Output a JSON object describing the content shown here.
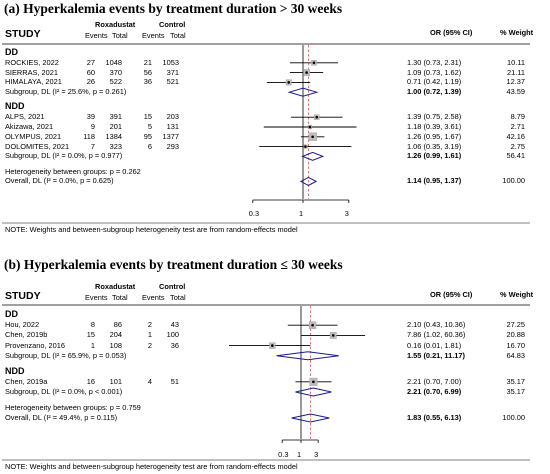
{
  "chart_data": [
    {
      "type": "forest",
      "title": "(a) Hyperkalemia events by treatment duration > 30 weeks",
      "scale": "log",
      "xticks": [
        0.3,
        1,
        3
      ],
      "xlim": [
        0.1,
        10
      ],
      "null_line": 1,
      "overall_line": 1.14,
      "headers": {
        "study": "STUDY",
        "arm1": "Roxadustat",
        "arm2": "Control",
        "events": "Events",
        "total": "Total",
        "or": "OR (95% CI)",
        "weight": "% Weight"
      },
      "rows": [
        {
          "kind": "group",
          "label": "DD"
        },
        {
          "kind": "study",
          "label": "ROCKIES, 2022",
          "e1": "27",
          "n1": "1048",
          "e2": "21",
          "n2": "1053",
          "or_text": "1.30 (0.73, 2.31)",
          "weight_text": "10.11",
          "or": 1.3,
          "lo": 0.73,
          "hi": 2.31,
          "weight": 10.11
        },
        {
          "kind": "study",
          "label": "SIERRAS, 2021",
          "e1": "60",
          "n1": "370",
          "e2": "56",
          "n2": "371",
          "or_text": "1.09 (0.73, 1.62)",
          "weight_text": "21.11",
          "or": 1.09,
          "lo": 0.73,
          "hi": 1.62,
          "weight": 21.11
        },
        {
          "kind": "study",
          "label": "HIMALAYA, 2021",
          "e1": "26",
          "n1": "522",
          "e2": "36",
          "n2": "521",
          "or_text": "0.71 (0.42, 1.19)",
          "weight_text": "12.37",
          "or": 0.71,
          "lo": 0.42,
          "hi": 1.19,
          "weight": 12.37
        },
        {
          "kind": "subgroup",
          "label": "Subgroup, DL (I² = 25.6%, p = 0.261)",
          "or_text": "1.00 (0.72, 1.39)",
          "weight_text": "43.59",
          "or": 1.0,
          "lo": 0.72,
          "hi": 1.39
        },
        {
          "kind": "gap"
        },
        {
          "kind": "group",
          "label": "NDD"
        },
        {
          "kind": "study",
          "label": "ALPS, 2021",
          "e1": "39",
          "n1": "391",
          "e2": "15",
          "n2": "203",
          "or_text": "1.39 (0.75, 2.58)",
          "weight_text": "8.79",
          "or": 1.39,
          "lo": 0.75,
          "hi": 2.58,
          "weight": 8.79
        },
        {
          "kind": "study",
          "label": "Akizawa, 2021",
          "e1": "9",
          "n1": "201",
          "e2": "5",
          "n2": "131",
          "or_text": "1.18 (0.39, 3.61)",
          "weight_text": "2.71",
          "or": 1.18,
          "lo": 0.39,
          "hi": 3.61,
          "weight": 2.71
        },
        {
          "kind": "study",
          "label": "OLYMPUS, 2021",
          "e1": "118",
          "n1": "1384",
          "e2": "95",
          "n2": "1377",
          "or_text": "1.26 (0.95, 1.67)",
          "weight_text": "42.16",
          "or": 1.26,
          "lo": 0.95,
          "hi": 1.67,
          "weight": 42.16
        },
        {
          "kind": "study",
          "label": "DOLOMITES, 2021",
          "e1": "7",
          "n1": "323",
          "e2": "6",
          "n2": "293",
          "or_text": "1.06 (0.35, 3.19)",
          "weight_text": "2.75",
          "or": 1.06,
          "lo": 0.35,
          "hi": 3.19,
          "weight": 2.75
        },
        {
          "kind": "subgroup",
          "label": "Subgroup, DL (I² = 0.0%, p = 0.977)",
          "or_text": "1.26 (0.99, 1.61)",
          "weight_text": "56.41",
          "or": 1.26,
          "lo": 0.99,
          "hi": 1.61
        },
        {
          "kind": "gap"
        },
        {
          "kind": "note",
          "label": "Heterogeneity between groups: p = 0.262"
        },
        {
          "kind": "overall",
          "label": "Overall, DL (I² = 0.0%, p = 0.625)",
          "or_text": "1.14 (0.95, 1.37)",
          "weight_text": "100.00",
          "or": 1.14,
          "lo": 0.95,
          "hi": 1.37
        }
      ],
      "footnote": "NOTE: Weights and between-subgroup heterogeneity test are from random-effects model"
    },
    {
      "type": "forest",
      "title": "(b) Hyperkalemia events by treatment duration ≤ 30 weeks",
      "scale": "log",
      "xticks": [
        0.3,
        1,
        3
      ],
      "xlim": [
        0.01,
        100
      ],
      "null_line": 1,
      "overall_line": 1.83,
      "headers": {
        "study": "STUDY",
        "arm1": "Roxadustat",
        "arm2": "Control",
        "events": "Events",
        "total": "Total",
        "or": "OR (95% CI)",
        "weight": "% Weight"
      },
      "rows": [
        {
          "kind": "group",
          "label": "DD"
        },
        {
          "kind": "study",
          "label": "Hou, 2022",
          "e1": "8",
          "n1": "86",
          "e2": "2",
          "n2": "43",
          "or_text": "2.10 (0.43, 10.36)",
          "weight_text": "27.25",
          "or": 2.1,
          "lo": 0.43,
          "hi": 10.36,
          "weight": 27.25
        },
        {
          "kind": "study",
          "label": "Chen, 2019b",
          "e1": "15",
          "n1": "204",
          "e2": "1",
          "n2": "100",
          "or_text": "7.86 (1.02, 60.36)",
          "weight_text": "20.88",
          "or": 7.86,
          "lo": 1.02,
          "hi": 60.36,
          "weight": 20.88
        },
        {
          "kind": "study",
          "label": "Provenzano, 2016",
          "e1": "1",
          "n1": "108",
          "e2": "2",
          "n2": "36",
          "or_text": "0.16 (0.01, 1.81)",
          "weight_text": "16.70",
          "or": 0.16,
          "lo": 0.01,
          "hi": 1.81,
          "weight": 16.7
        },
        {
          "kind": "subgroup",
          "label": "Subgroup, DL (I² = 65.9%, p = 0.053)",
          "or_text": "1.55 (0.21, 11.17)",
          "weight_text": "64.83",
          "or": 1.55,
          "lo": 0.21,
          "hi": 11.17
        },
        {
          "kind": "gap"
        },
        {
          "kind": "group",
          "label": "NDD"
        },
        {
          "kind": "study",
          "label": "Chen, 2019a",
          "e1": "16",
          "n1": "101",
          "e2": "4",
          "n2": "51",
          "or_text": "2.21 (0.70, 7.00)",
          "weight_text": "35.17",
          "or": 2.21,
          "lo": 0.7,
          "hi": 7.0,
          "weight": 35.17
        },
        {
          "kind": "subgroup",
          "label": "Subgroup, DL (I² = 0.0%, p < 0.001)",
          "or_text": "2.21 (0.70, 6.99)",
          "weight_text": "35.17",
          "or": 2.21,
          "lo": 0.7,
          "hi": 6.99
        },
        {
          "kind": "gap"
        },
        {
          "kind": "note",
          "label": "Heterogeneity between groups: p = 0.759"
        },
        {
          "kind": "overall",
          "label": "Overall, DL (I² = 49.4%, p = 0.115)",
          "or_text": "1.83 (0.55, 6.13)",
          "weight_text": "100.00",
          "or": 1.83,
          "lo": 0.55,
          "hi": 6.13
        }
      ],
      "footnote": "NOTE: Weights and between-subgroup heterogeneity test are from random-effects model"
    }
  ]
}
